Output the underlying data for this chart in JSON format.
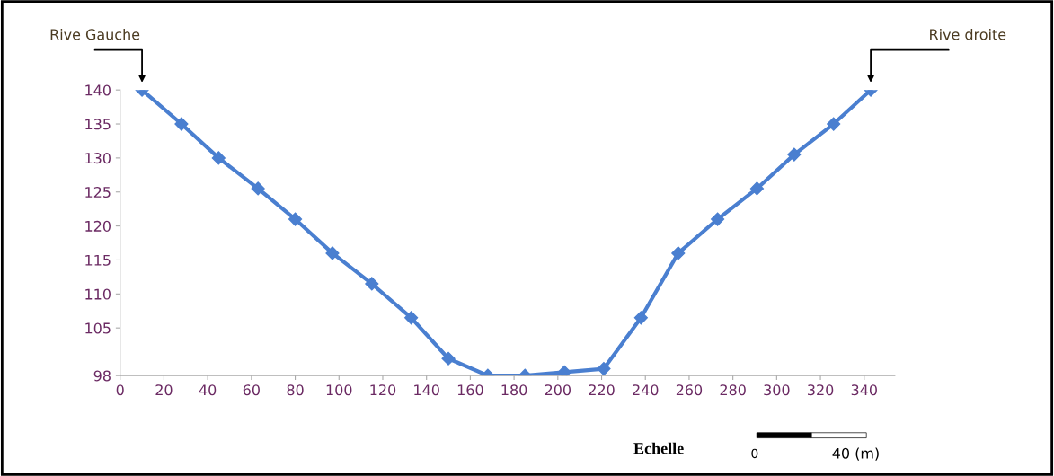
{
  "chart_data": {
    "type": "line",
    "x": [
      10,
      28,
      45,
      63,
      80,
      97,
      115,
      133,
      150,
      168,
      185,
      203,
      221,
      238,
      255,
      273,
      291,
      308,
      326,
      343
    ],
    "series": [
      {
        "color": "#4a7fd0",
        "values": [
          140,
          135,
          130,
          125.5,
          121,
          116,
          111.5,
          106.5,
          100.5,
          98,
          98,
          98.5,
          99,
          106.5,
          116,
          121,
          125.5,
          130.5,
          135,
          140
        ]
      }
    ],
    "xlim": [
      0,
      354
    ],
    "xticks": [
      0,
      20,
      40,
      60,
      80,
      100,
      120,
      140,
      160,
      180,
      200,
      220,
      240,
      260,
      280,
      300,
      320,
      340
    ],
    "ylim": [
      98,
      140
    ],
    "yticks": [
      98,
      105,
      110,
      115,
      120,
      125,
      130,
      135,
      140
    ],
    "marker": "diamond",
    "line_style": "solid",
    "grid": false,
    "annotations": [
      "Rive Gauche",
      "Rive droite",
      "Echelle",
      "0",
      "40 (m)"
    ]
  }
}
